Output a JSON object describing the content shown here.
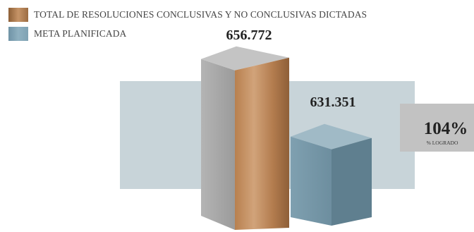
{
  "chart_data": {
    "type": "bar",
    "series": [
      {
        "name": "TOTAL DE RESOLUCIONES CONCLUSIVAS Y NO CONCLUSIVAS DICTADAS",
        "value": 656772,
        "label": "656.772",
        "color": "#b7814f"
      },
      {
        "name": "META PLANIFICADA",
        "value": 631351,
        "label": "631.351",
        "color": "#7fa2b3"
      }
    ],
    "achievement": {
      "value": "104%",
      "label": "% LOGRADO"
    }
  }
}
